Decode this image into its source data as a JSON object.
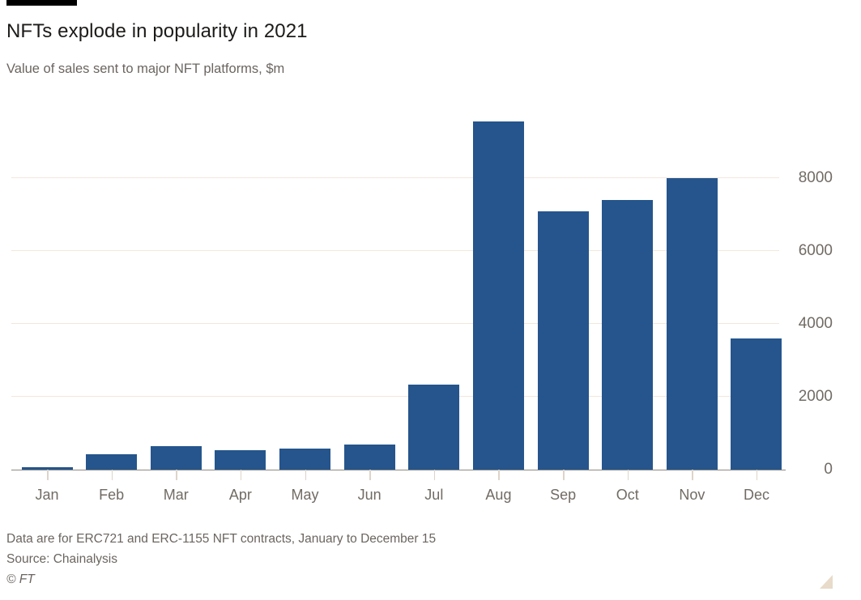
{
  "header": {
    "title": "NFTs explode in popularity in 2021",
    "subtitle": "Value of sales sent to major NFT platforms, $m"
  },
  "chart_data": {
    "type": "bar",
    "title": "NFTs explode in popularity in 2021",
    "subtitle": "Value of sales sent to major NFT platforms, $m",
    "categories": [
      "Jan",
      "Feb",
      "Mar",
      "Apr",
      "May",
      "Jun",
      "Jul",
      "Aug",
      "Sep",
      "Oct",
      "Nov",
      "Dec"
    ],
    "values": [
      75,
      430,
      650,
      540,
      580,
      680,
      2330,
      9550,
      7100,
      7400,
      8000,
      3600
    ],
    "xlabel": "",
    "ylabel": "",
    "ylim": [
      0,
      10000
    ],
    "yticks": [
      0,
      2000,
      4000,
      6000,
      8000
    ],
    "ytick_labels": [
      "0",
      "2000",
      "4000",
      "6000",
      "8000"
    ],
    "grid": "horizontal",
    "legend": "none",
    "y_axis_side": "right"
  },
  "footer": {
    "note": "Data are for ERC721 and ERC-1155 NFT contracts, January to December 15",
    "source": "Source: Chainalysis",
    "copyright": "© FT"
  },
  "colors": {
    "bar": "#25558C",
    "gridline": "#f2e7dd",
    "axis_line": "#8f8983",
    "tick": "#ddd4ca",
    "title_text": "#1d1b19",
    "muted_text": "#6b6560",
    "accent_bar": "#000000",
    "corner_triangle": "#e8dbc9",
    "background": "#ffffff"
  }
}
